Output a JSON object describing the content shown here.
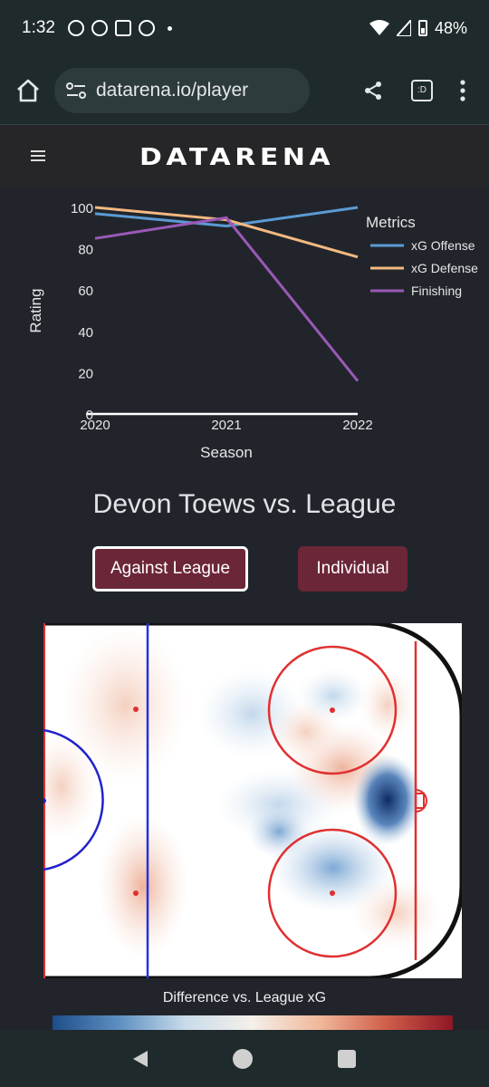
{
  "status": {
    "time": "1:32",
    "battery": "48%"
  },
  "browser": {
    "url": "datarena.io/player",
    "tab_badge": ":D"
  },
  "site": {
    "logo": "DATARENA"
  },
  "chart_data": {
    "type": "line",
    "x": [
      2020,
      2021,
      2022
    ],
    "xlabel": "Season",
    "ylabel": "Rating",
    "ylim": [
      0,
      100
    ],
    "yticks": [
      0,
      20,
      40,
      60,
      80,
      100
    ],
    "legend_title": "Metrics",
    "legend_position": "right",
    "series": [
      {
        "name": "xG Offense",
        "color": "#5b9bd5",
        "values": [
          97,
          91,
          100
        ]
      },
      {
        "name": "xG Defense",
        "color": "#f4b982",
        "values": [
          100,
          94,
          76
        ]
      },
      {
        "name": "Finishing",
        "color": "#9b59b6",
        "values": [
          85,
          95,
          16
        ]
      }
    ]
  },
  "player": {
    "title": "Devon Toews vs. League"
  },
  "buttons": {
    "against": "Against League",
    "individual": "Individual"
  },
  "heatmap": {
    "colorbar_title": "Difference vs. League xG"
  }
}
